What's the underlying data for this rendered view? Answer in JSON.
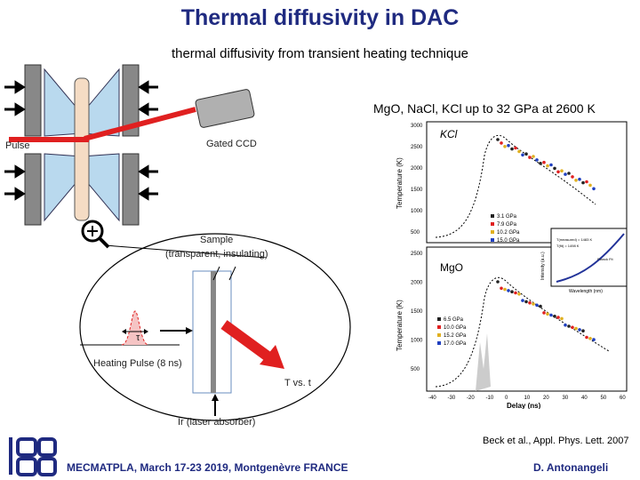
{
  "header": {
    "title": "Thermal diffusivity in DAC",
    "subtitle": "thermal diffusivity from transient heating technique"
  },
  "conditions": "MgO, NaCl, KCl up to 32 GPa at 2600 K",
  "labels": {
    "pulse": "Pulse",
    "gated_ccd": "Gated CCD",
    "sample": "Sample",
    "sample_detail": "(transparent, insulating)",
    "tau": "τ",
    "heating_pulse": "Heating Pulse (8 ns)",
    "t_vs_t": "T vs. t",
    "absorber": "Ir (laser absorber)"
  },
  "plots": {
    "kcl": {
      "name": "KCl",
      "ylabel": "Temperature (K)",
      "yticks": [
        "3000",
        "2500",
        "2000",
        "1500",
        "1000",
        "500"
      ],
      "legend": [
        "3.1 GPa",
        "7.9 GPa",
        "10.2 GPa",
        "15.0 GPa"
      ]
    },
    "mgo": {
      "name": "MgO",
      "ylabel": "Temperature (K)",
      "yticks": [
        "2500",
        "2000",
        "1500",
        "1000",
        "500"
      ],
      "legend": [
        "6.5 GPa",
        "10.0 GPa",
        "15.2 GPa",
        "17.0 GPa"
      ],
      "xlabel": "Delay (ns)",
      "xticks": [
        "-40",
        "-30",
        "-20",
        "-10",
        "0",
        "10",
        "20",
        "30",
        "40",
        "50",
        "60"
      ]
    },
    "inset": {
      "xlabel": "Wavelength (nm)",
      "ylabel": "Intensity (a.u.)",
      "legend": "Planck Fit",
      "t1": "T(measured) = 1483 K",
      "t2": "T(fit) = 1498 K"
    }
  },
  "reference": "Beck et al., Appl. Phys. Lett. 2007",
  "footer": {
    "conference": "MECMATPLA, March 17-23 2019, Montgenèvre FRANCE",
    "author": "D. Antonangeli"
  },
  "colors": {
    "title": "#1f2a80",
    "beam": "#e02020",
    "diamond": "#b9d9ee"
  }
}
